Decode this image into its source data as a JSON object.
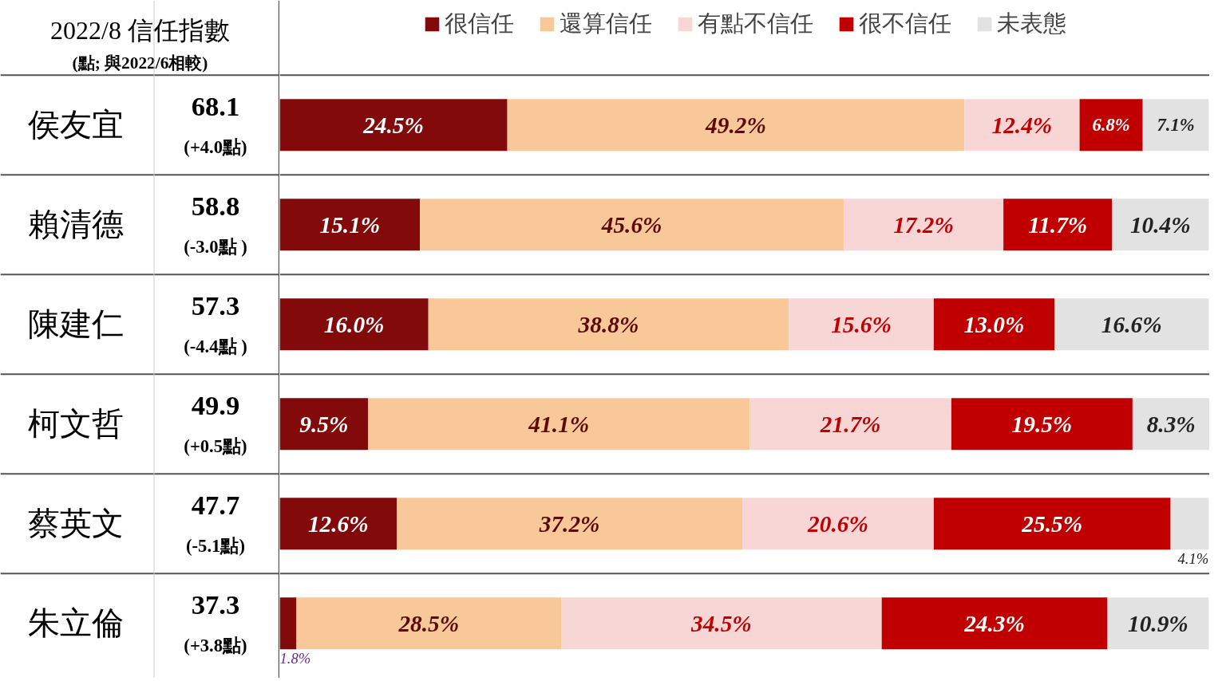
{
  "chart_data": {
    "type": "bar",
    "orientation": "horizontal",
    "stacked": true,
    "title": "2022/8 信任指數",
    "subtitle": "(點; 與2022/6相較)",
    "categories": [
      "侯友宜",
      "賴清德",
      "陳建仁",
      "柯文哲",
      "蔡英文",
      "朱立倫"
    ],
    "annotations": [
      "68.1",
      "(+4.0點)",
      "58.8",
      "(-3.0點 )",
      "57.3",
      "(-4.4點 )",
      "49.9",
      "(+0.5點)",
      "47.7",
      "(-5.1點)",
      "37.3",
      "(+3.8點)"
    ],
    "xlim": [
      0,
      100.1
    ],
    "tick_labels": false,
    "grid": false,
    "legend": "top",
    "series": [
      {
        "name": "很信任",
        "color": "#820a0a",
        "values": [
          24.5,
          15.1,
          16.0,
          9.5,
          12.6,
          1.8
        ],
        "value_labels": [
          "24.5%",
          "15.1%",
          "16.0%",
          "9.5%",
          "12.6%",
          "1.8%"
        ]
      },
      {
        "name": "還算信任",
        "color": "#f9c898",
        "values": [
          49.2,
          45.6,
          38.8,
          41.1,
          37.2,
          28.5
        ],
        "value_labels": [
          "49.2%",
          "45.6%",
          "38.8%",
          "41.1%",
          "37.2%",
          "28.5%"
        ]
      },
      {
        "name": "有點不信任",
        "color": "#f9d6d6",
        "values": [
          12.4,
          17.2,
          15.6,
          21.7,
          20.6,
          34.5
        ],
        "value_labels": [
          "12.4%",
          "17.2%",
          "15.6%",
          "21.7%",
          "20.6%",
          "34.5%"
        ]
      },
      {
        "name": "很不信任",
        "color": "#c00000",
        "values": [
          6.8,
          11.7,
          13.0,
          19.5,
          25.5,
          24.3
        ],
        "value_labels": [
          "6.8%",
          "11.7%",
          "13.0%",
          "19.5%",
          "25.5%",
          "24.3%"
        ]
      },
      {
        "name": "未表態",
        "color": "#e2e2e2",
        "values": [
          7.1,
          10.4,
          16.6,
          8.3,
          4.1,
          10.9
        ],
        "value_labels": [
          "7.1%",
          "10.4%",
          "16.6%",
          "8.3%",
          "4.1%",
          "10.9%"
        ]
      }
    ]
  }
}
